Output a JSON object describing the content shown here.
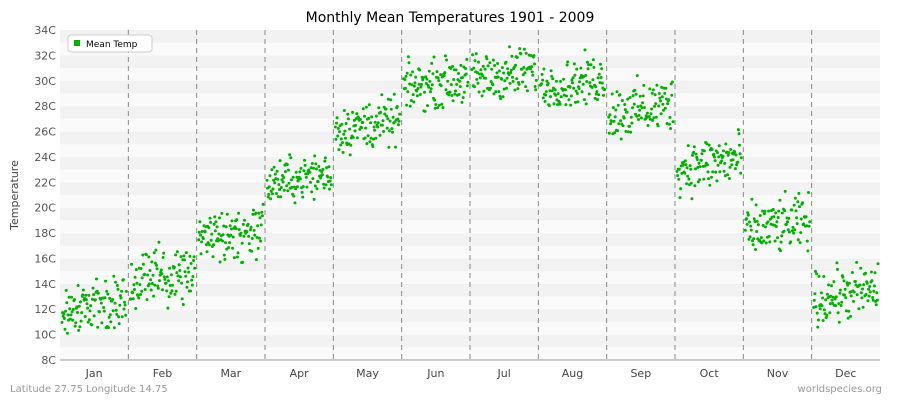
{
  "chart_data": {
    "type": "scatter",
    "title": "Monthly Mean Temperatures 1901 - 2009",
    "ylabel": "Temperature",
    "xlabel": "",
    "categories": [
      "Jan",
      "Feb",
      "Mar",
      "Apr",
      "May",
      "Jun",
      "Jul",
      "Aug",
      "Sep",
      "Oct",
      "Nov",
      "Dec"
    ],
    "yticks": [
      "8C",
      "10C",
      "12C",
      "14C",
      "16C",
      "18C",
      "20C",
      "22C",
      "24C",
      "26C",
      "28C",
      "30C",
      "32C",
      "34C"
    ],
    "ylim": [
      8,
      34
    ],
    "legend": {
      "label": "Mean Temp",
      "placement": "top-left"
    },
    "grid": true,
    "colors": {
      "points": "#00b000",
      "band": "#f2f2f2",
      "divider": "#888888"
    },
    "series": [
      {
        "name": "Mean Temp",
        "points_per_month": 109,
        "monthly_stats": [
          {
            "month": "Jan",
            "mean": 12.3,
            "min": 9.2,
            "max": 15.2
          },
          {
            "month": "Feb",
            "mean": 14.5,
            "min": 12.0,
            "max": 19.0
          },
          {
            "month": "Mar",
            "mean": 18.0,
            "min": 15.5,
            "max": 21.8
          },
          {
            "month": "Apr",
            "mean": 22.3,
            "min": 19.5,
            "max": 24.5
          },
          {
            "month": "May",
            "mean": 26.5,
            "min": 24.0,
            "max": 29.5
          },
          {
            "month": "Jun",
            "mean": 29.8,
            "min": 27.5,
            "max": 32.8
          },
          {
            "month": "Jul",
            "mean": 30.5,
            "min": 28.0,
            "max": 33.8
          },
          {
            "month": "Aug",
            "mean": 29.8,
            "min": 28.0,
            "max": 33.5
          },
          {
            "month": "Sep",
            "mean": 27.8,
            "min": 24.5,
            "max": 30.8
          },
          {
            "month": "Oct",
            "mean": 23.5,
            "min": 20.5,
            "max": 26.8
          },
          {
            "month": "Nov",
            "mean": 18.5,
            "min": 15.3,
            "max": 21.5
          },
          {
            "month": "Dec",
            "mean": 13.2,
            "min": 10.3,
            "max": 16.5
          }
        ]
      }
    ]
  },
  "footer": {
    "location": "Latitude 27.75 Longitude 14.75",
    "source": "worldspecies.org"
  }
}
